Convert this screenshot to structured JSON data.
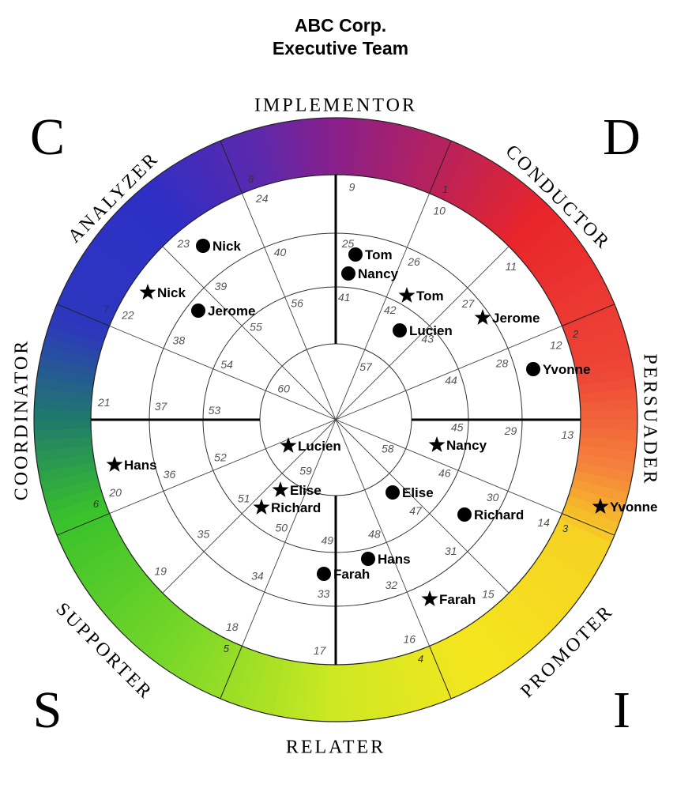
{
  "title": {
    "line1": "ABC Corp.",
    "line2": "Executive Team"
  },
  "quadrants": {
    "top_left": "C",
    "top_right": "D",
    "bottom_left": "S",
    "bottom_right": "I"
  },
  "roles": [
    {
      "key": "implementor",
      "label": "IMPLEMENTOR"
    },
    {
      "key": "conductor",
      "label": "CONDUCTOR"
    },
    {
      "key": "persuader",
      "label": "PERSUADER"
    },
    {
      "key": "promoter",
      "label": "PROMOTER"
    },
    {
      "key": "relater",
      "label": "RELATER"
    },
    {
      "key": "supporter",
      "label": "SUPPORTER"
    },
    {
      "key": "coordinator",
      "label": "COORDINATOR"
    },
    {
      "key": "analyzer",
      "label": "ANALYZER"
    }
  ],
  "ring_numbers": [
    "1",
    "2",
    "3",
    "4",
    "5",
    "6",
    "7",
    "8"
  ],
  "segment_numbers": {
    "band1": [
      "9",
      "10",
      "11",
      "12",
      "13",
      "14",
      "15",
      "16",
      "17",
      "18",
      "19",
      "20",
      "21",
      "22",
      "23",
      "24"
    ],
    "band2": [
      "25",
      "26",
      "27",
      "28",
      "29",
      "30",
      "31",
      "32",
      "33",
      "34",
      "35",
      "36",
      "37",
      "38",
      "39",
      "40"
    ],
    "band3": [
      "41",
      "42",
      "43",
      "44",
      "45",
      "46",
      "47",
      "48",
      "49",
      "50",
      "51",
      "52",
      "53",
      "54",
      "55",
      "56"
    ],
    "band4": [
      "57",
      "58",
      "59",
      "60"
    ]
  },
  "people": [
    {
      "name": "Nick",
      "marker": "dot"
    },
    {
      "name": "Nick",
      "marker": "star"
    },
    {
      "name": "Jerome",
      "marker": "dot"
    },
    {
      "name": "Tom",
      "marker": "dot"
    },
    {
      "name": "Nancy",
      "marker": "dot"
    },
    {
      "name": "Tom",
      "marker": "star"
    },
    {
      "name": "Lucien",
      "marker": "dot"
    },
    {
      "name": "Jerome",
      "marker": "star"
    },
    {
      "name": "Yvonne",
      "marker": "dot"
    },
    {
      "name": "Nancy",
      "marker": "star"
    },
    {
      "name": "Lucien",
      "marker": "star"
    },
    {
      "name": "Hans",
      "marker": "star"
    },
    {
      "name": "Elise",
      "marker": "star"
    },
    {
      "name": "Richard",
      "marker": "star"
    },
    {
      "name": "Elise",
      "marker": "dot"
    },
    {
      "name": "Richard",
      "marker": "dot"
    },
    {
      "name": "Yvonne",
      "marker": "star"
    },
    {
      "name": "Hans",
      "marker": "dot"
    },
    {
      "name": "Farah",
      "marker": "dot"
    },
    {
      "name": "Farah",
      "marker": "star"
    }
  ],
  "colors": {
    "implementor": "#8a1f8a",
    "conductor": "#e8252a",
    "persuader": "#f06a3c",
    "promoter": "#f5e11d",
    "relater": "#c8e622",
    "supporter": "#39c22b",
    "coordinator": "#1f7a6a",
    "analyzer": "#2d2fc6"
  }
}
